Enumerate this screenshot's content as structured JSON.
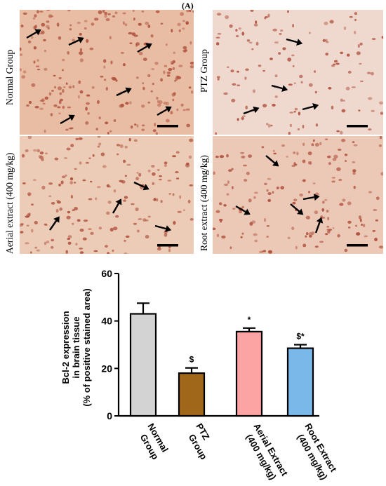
{
  "figure": {
    "panel_label": "(A)",
    "micrographs": [
      {
        "label": "Normal Group",
        "tone": "#e8bda3"
      },
      {
        "label": "PTZ Group",
        "tone": "#efd9ce"
      },
      {
        "label": "Aerial extract (400 mg/kg)",
        "tone": "#ecccb6"
      },
      {
        "label": "Root extract (400 mg/kg)",
        "tone": "#ecc9b6"
      }
    ],
    "nucleus_color": "#b0523f"
  },
  "chart_data": {
    "type": "bar",
    "categories": [
      [
        "Normal",
        "Group"
      ],
      [
        "PTZ",
        "Group"
      ],
      [
        "Aerial Extract",
        "(400 mg/kg)"
      ],
      [
        "Root Extract",
        "(400 mg/kg)"
      ]
    ],
    "values": [
      43,
      18,
      35.5,
      28.5
    ],
    "errors": [
      4.5,
      2.2,
      1.5,
      1.5
    ],
    "annotations": [
      "",
      "$",
      "*",
      "$*"
    ],
    "colors": [
      "#d3d3d3",
      "#a0661a",
      "#fca3a3",
      "#7ab8ea"
    ],
    "ylabel": [
      "Bcl-2 expression",
      "in brain tissue",
      "(% of positive stained area)"
    ],
    "ylim": [
      0,
      60
    ],
    "yticks": [
      0,
      20,
      40,
      60
    ]
  }
}
